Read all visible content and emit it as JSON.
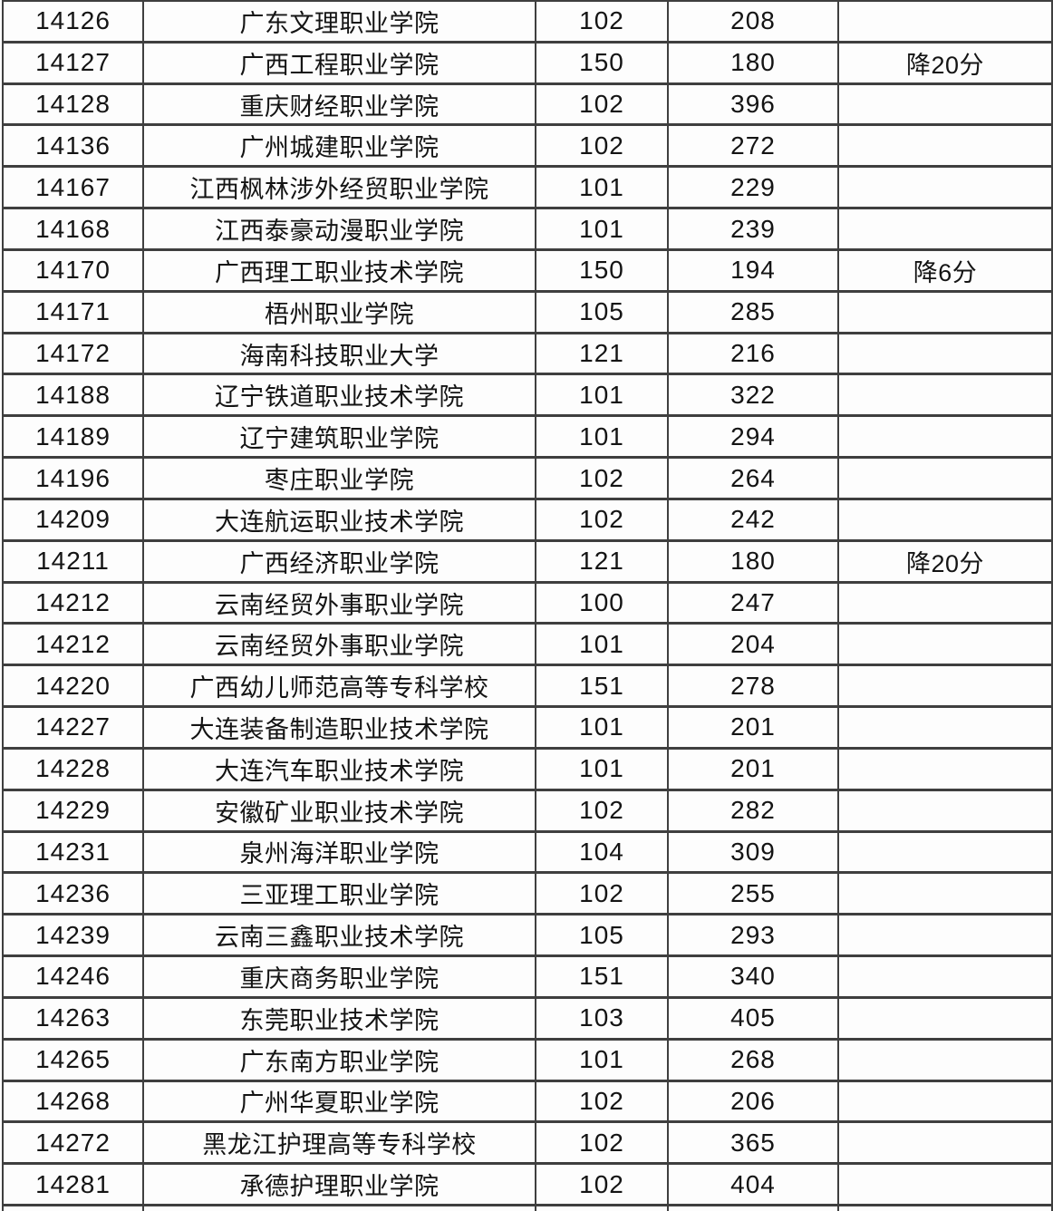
{
  "colors": {
    "border": "#3f3f3f",
    "text": "#141414",
    "background": "#fdfdfd"
  },
  "table": {
    "rows": [
      {
        "code": "14126",
        "name": "广东文理职业学院",
        "num": "102",
        "score": "208",
        "note": ""
      },
      {
        "code": "14127",
        "name": "广西工程职业学院",
        "num": "150",
        "score": "180",
        "note": "降20分"
      },
      {
        "code": "14128",
        "name": "重庆财经职业学院",
        "num": "102",
        "score": "396",
        "note": ""
      },
      {
        "code": "14136",
        "name": "广州城建职业学院",
        "num": "102",
        "score": "272",
        "note": ""
      },
      {
        "code": "14167",
        "name": "江西枫林涉外经贸职业学院",
        "num": "101",
        "score": "229",
        "note": ""
      },
      {
        "code": "14168",
        "name": "江西泰豪动漫职业学院",
        "num": "101",
        "score": "239",
        "note": ""
      },
      {
        "code": "14170",
        "name": "广西理工职业技术学院",
        "num": "150",
        "score": "194",
        "note": "降6分"
      },
      {
        "code": "14171",
        "name": "梧州职业学院",
        "num": "105",
        "score": "285",
        "note": ""
      },
      {
        "code": "14172",
        "name": "海南科技职业大学",
        "num": "121",
        "score": "216",
        "note": ""
      },
      {
        "code": "14188",
        "name": "辽宁铁道职业技术学院",
        "num": "101",
        "score": "322",
        "note": ""
      },
      {
        "code": "14189",
        "name": "辽宁建筑职业学院",
        "num": "101",
        "score": "294",
        "note": ""
      },
      {
        "code": "14196",
        "name": "枣庄职业学院",
        "num": "102",
        "score": "264",
        "note": ""
      },
      {
        "code": "14209",
        "name": "大连航运职业技术学院",
        "num": "102",
        "score": "242",
        "note": ""
      },
      {
        "code": "14211",
        "name": "广西经济职业学院",
        "num": "121",
        "score": "180",
        "note": "降20分"
      },
      {
        "code": "14212",
        "name": "云南经贸外事职业学院",
        "num": "100",
        "score": "247",
        "note": ""
      },
      {
        "code": "14212",
        "name": "云南经贸外事职业学院",
        "num": "101",
        "score": "204",
        "note": ""
      },
      {
        "code": "14220",
        "name": "广西幼儿师范高等专科学校",
        "num": "151",
        "score": "278",
        "note": ""
      },
      {
        "code": "14227",
        "name": "大连装备制造职业技术学院",
        "num": "101",
        "score": "201",
        "note": ""
      },
      {
        "code": "14228",
        "name": "大连汽车职业技术学院",
        "num": "101",
        "score": "201",
        "note": ""
      },
      {
        "code": "14229",
        "name": "安徽矿业职业技术学院",
        "num": "102",
        "score": "282",
        "note": ""
      },
      {
        "code": "14231",
        "name": "泉州海洋职业学院",
        "num": "104",
        "score": "309",
        "note": ""
      },
      {
        "code": "14236",
        "name": "三亚理工职业学院",
        "num": "102",
        "score": "255",
        "note": ""
      },
      {
        "code": "14239",
        "name": "云南三鑫职业技术学院",
        "num": "105",
        "score": "293",
        "note": ""
      },
      {
        "code": "14246",
        "name": "重庆商务职业学院",
        "num": "151",
        "score": "340",
        "note": ""
      },
      {
        "code": "14263",
        "name": "东莞职业技术学院",
        "num": "103",
        "score": "405",
        "note": ""
      },
      {
        "code": "14265",
        "name": "广东南方职业学院",
        "num": "101",
        "score": "268",
        "note": ""
      },
      {
        "code": "14268",
        "name": "广州华夏职业学院",
        "num": "102",
        "score": "206",
        "note": ""
      },
      {
        "code": "14272",
        "name": "黑龙江护理高等专科学校",
        "num": "102",
        "score": "365",
        "note": ""
      },
      {
        "code": "14281",
        "name": "承德护理职业学院",
        "num": "102",
        "score": "404",
        "note": ""
      },
      {
        "code": "",
        "name": "",
        "num": "",
        "score": "",
        "note": ""
      }
    ]
  }
}
